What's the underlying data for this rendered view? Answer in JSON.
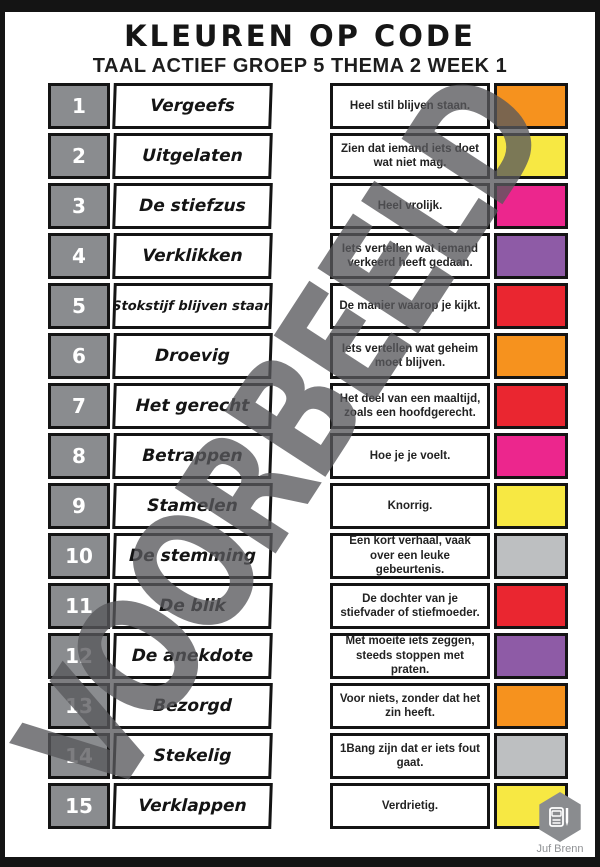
{
  "header": {
    "title": "KLEUREN OP CODE",
    "subtitle": "TAAL ACTIEF GROEP 5 THEMA 2 WEEK 1"
  },
  "watermark": "VOORBEELD",
  "palette": {
    "orange": "#F6921E",
    "yellow": "#F7E843",
    "pink": "#EC268D",
    "purple": "#8E5BA6",
    "red": "#EA2630",
    "gray": "#BDBFC1",
    "cell_gray": "#8A8C8F",
    "border_black": "#141414"
  },
  "left_table": {
    "rows": [
      {
        "num": "1",
        "word": "Vergeefs"
      },
      {
        "num": "2",
        "word": "Uitgelaten"
      },
      {
        "num": "3",
        "word": "De stiefzus"
      },
      {
        "num": "4",
        "word": "Verklikken"
      },
      {
        "num": "5",
        "word": "Stokstijf blijven staan"
      },
      {
        "num": "6",
        "word": "Droevig"
      },
      {
        "num": "7",
        "word": "Het gerecht"
      },
      {
        "num": "8",
        "word": "Betrappen"
      },
      {
        "num": "9",
        "word": "Stamelen"
      },
      {
        "num": "10",
        "word": "De stemming"
      },
      {
        "num": "11",
        "word": "De blik"
      },
      {
        "num": "12",
        "word": "De anekdote"
      },
      {
        "num": "13",
        "word": "Bezorgd"
      },
      {
        "num": "14",
        "word": "Stekelig"
      },
      {
        "num": "15",
        "word": "Verklappen"
      }
    ]
  },
  "right_table": {
    "rows": [
      {
        "definition": "Heel stil blijven staan.",
        "color_name": "orange",
        "color": "#F6921E"
      },
      {
        "definition": "Zien dat iemand iets doet wat niet mag.",
        "color_name": "yellow",
        "color": "#F7E843"
      },
      {
        "definition": "Heel vrolijk.",
        "color_name": "pink",
        "color": "#EC268D"
      },
      {
        "definition": "Iets vertellen wat iemand verkeerd heeft gedaan.",
        "color_name": "purple",
        "color": "#8E5BA6"
      },
      {
        "definition": "De manier waarop je kijkt.",
        "color_name": "red",
        "color": "#EA2630"
      },
      {
        "definition": "Iets vertellen wat geheim moet blijven.",
        "color_name": "orange",
        "color": "#F6921E"
      },
      {
        "definition": "Het deel van een maaltijd, zoals een hoofdgerecht.",
        "color_name": "red",
        "color": "#EA2630"
      },
      {
        "definition": "Hoe je je voelt.",
        "color_name": "pink",
        "color": "#EC268D"
      },
      {
        "definition": "Knorrig.",
        "color_name": "yellow",
        "color": "#F7E843"
      },
      {
        "definition": "Een kort verhaal, vaak over een leuke gebeurtenis.",
        "color_name": "gray",
        "color": "#BDBFC1"
      },
      {
        "definition": "De dochter van je stiefvader of stiefmoeder.",
        "color_name": "red",
        "color": "#EA2630"
      },
      {
        "definition": "Met moeite iets zeggen, steeds stoppen met praten.",
        "color_name": "purple",
        "color": "#8E5BA6"
      },
      {
        "definition": "Voor niets, zonder dat het zin heeft.",
        "color_name": "orange",
        "color": "#F6921E"
      },
      {
        "definition": "1Bang zijn dat er iets fout gaat.",
        "color_name": "gray",
        "color": "#BDBFC1"
      },
      {
        "definition": "Verdrietig.",
        "color_name": "yellow",
        "color": "#F7E843"
      }
    ]
  },
  "footer": {
    "credit": "Juf Brenn"
  }
}
